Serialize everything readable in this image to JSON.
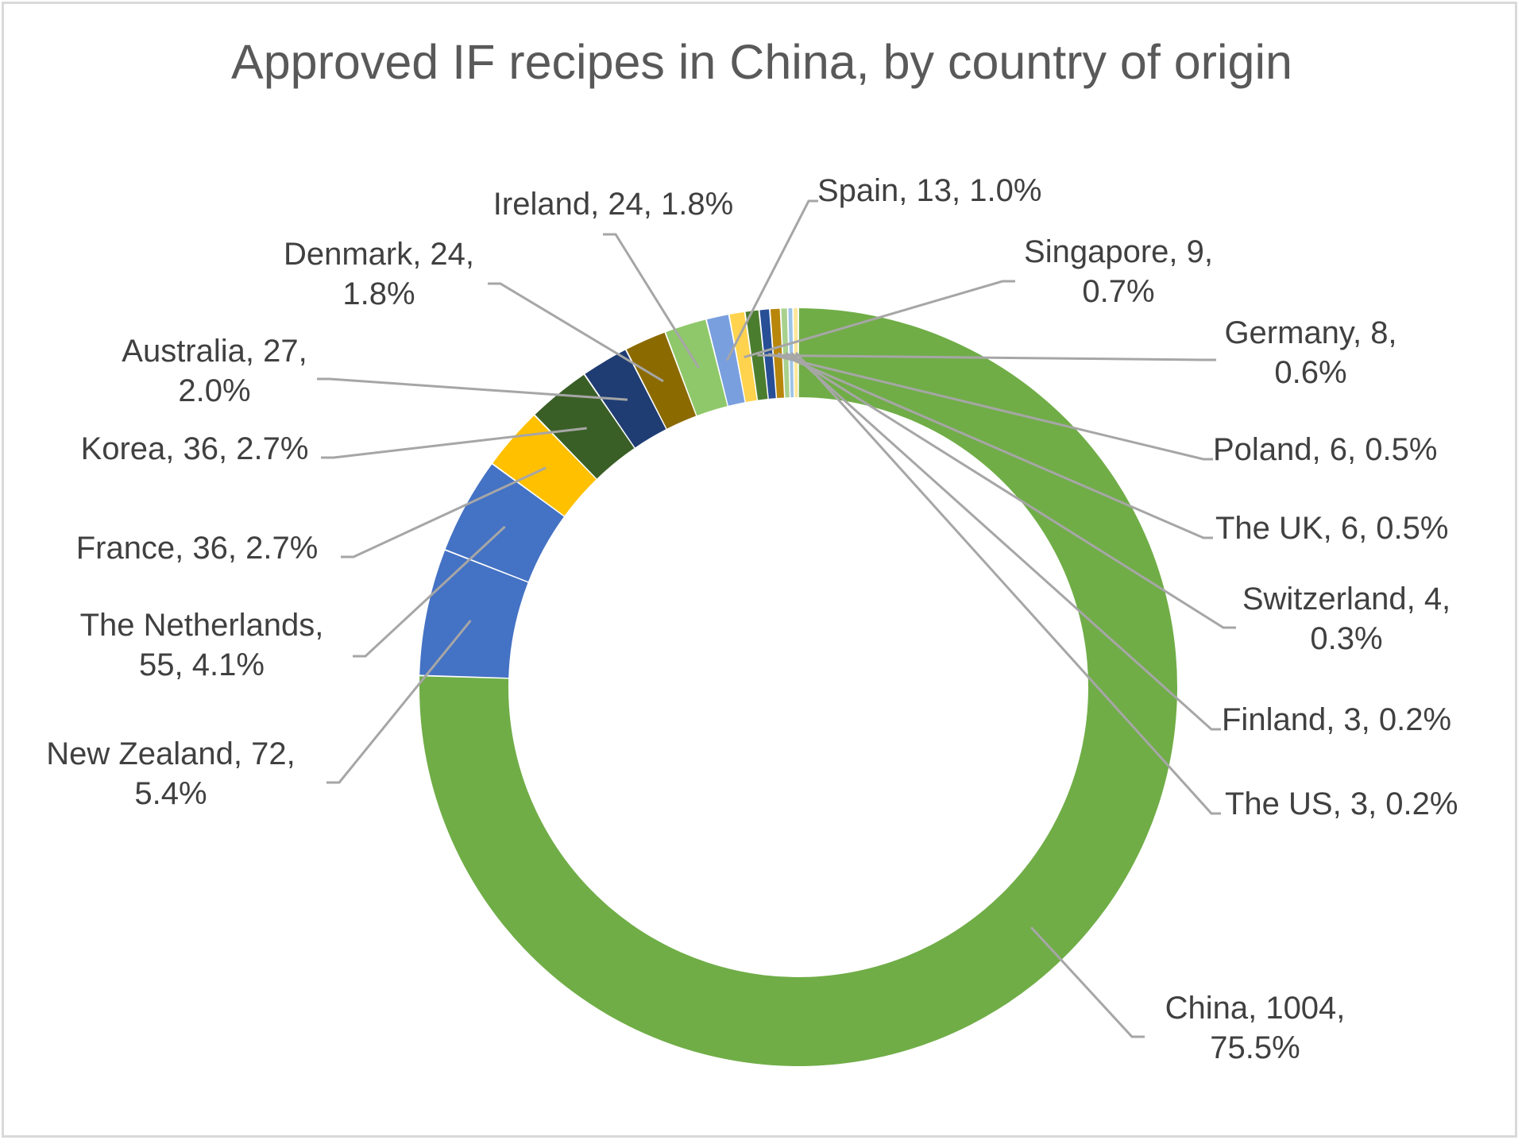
{
  "chart_data": {
    "type": "pie",
    "variant": "doughnut",
    "title": "Approved IF recipes in China, by country of origin",
    "legend": "none",
    "data_label_format": "category, value, percent",
    "series": [
      {
        "categories": [
          "China",
          "New Zealand",
          "The Netherlands",
          "France",
          "Korea",
          "Australia",
          "Denmark",
          "Ireland",
          "Spain",
          "Singapore",
          "Germany",
          "Poland",
          "The UK",
          "Switzerland",
          "Finland",
          "The US"
        ],
        "values": [
          1004,
          72,
          55,
          36,
          36,
          27,
          24,
          24,
          13,
          9,
          8,
          6,
          6,
          4,
          3,
          3
        ],
        "percent_labels": [
          "75.5%",
          "5.4%",
          "4.1%",
          "2.7%",
          "2.7%",
          "2.0%",
          "1.8%",
          "1.8%",
          "1.0%",
          "0.7%",
          "0.6%",
          "0.5%",
          "0.5%",
          "0.3%",
          "0.2%",
          "0.2%"
        ],
        "data_labels": [
          [
            "China, 1004,",
            "75.5%"
          ],
          [
            "New Zealand, 72,",
            "5.4%"
          ],
          [
            "The Netherlands,",
            "55, 4.1%"
          ],
          [
            "France, 36, 2.7%"
          ],
          [
            "Korea, 36, 2.7%"
          ],
          [
            "Australia, 27,",
            "2.0%"
          ],
          [
            "Denmark, 24,",
            "1.8%"
          ],
          [
            "Ireland, 24, 1.8%"
          ],
          [
            "Spain, 13, 1.0%"
          ],
          [
            "Singapore, 9,",
            "0.7%"
          ],
          [
            "Germany, 8,",
            "0.6%"
          ],
          [
            "Poland, 6, 0.5%"
          ],
          [
            "The UK, 6, 0.5%"
          ],
          [
            "Switzerland, 4,",
            "0.3%"
          ],
          [
            "Finland, 3, 0.2%"
          ],
          [
            "The US, 3, 0.2%"
          ]
        ],
        "colors": [
          "#70ad47",
          "#4472c4",
          "#4472c4",
          "#ffc000",
          "#3a5f26",
          "#1f3d73",
          "#8b6a00",
          "#8fc86a",
          "#7a9fdf",
          "#ffd34d",
          "#4b7d2e",
          "#284f96",
          "#b8860b",
          "#a9d18e",
          "#9dc3e6",
          "#ffe699"
        ]
      }
    ]
  }
}
